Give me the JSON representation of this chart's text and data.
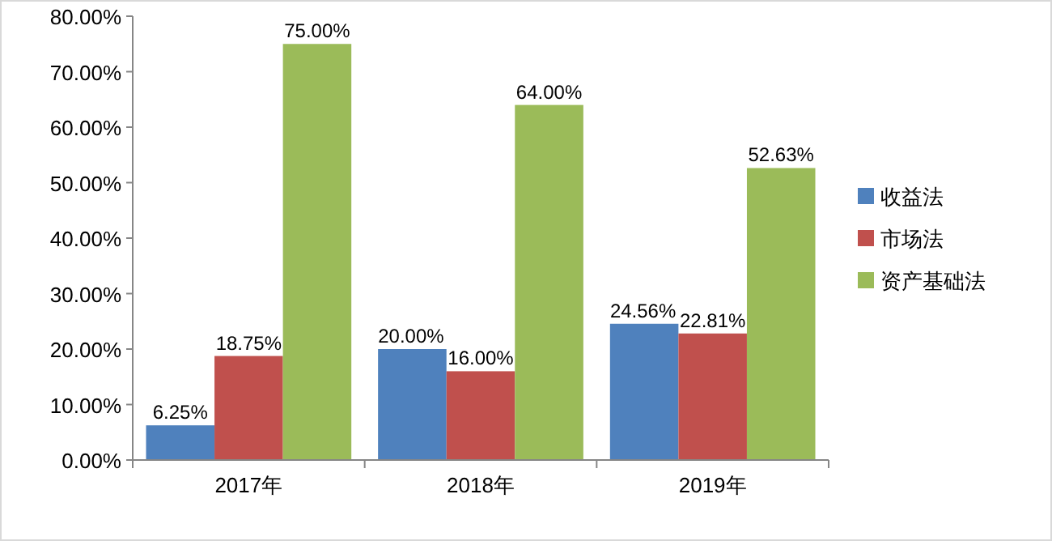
{
  "chart_data": {
    "type": "bar",
    "categories": [
      "2017年",
      "2018年",
      "2019年"
    ],
    "series": [
      {
        "name": "收益法",
        "color": "#4f81bd",
        "values": [
          6.25,
          20.0,
          24.56
        ],
        "value_labels": [
          "6.25%",
          "20.00%",
          "24.56%"
        ]
      },
      {
        "name": "市场法",
        "color": "#c0504d",
        "values": [
          18.75,
          16.0,
          22.81
        ],
        "value_labels": [
          "18.75%",
          "16.00%",
          "22.81%"
        ]
      },
      {
        "name": "资产基础法",
        "color": "#9bbb59",
        "values": [
          75.0,
          64.0,
          52.63
        ],
        "value_labels": [
          "75.00%",
          "64.00%",
          "52.63%"
        ]
      }
    ],
    "ylim": [
      0,
      80
    ],
    "yticks": [
      {
        "value": 0,
        "label": "0.00%"
      },
      {
        "value": 10,
        "label": "10.00%"
      },
      {
        "value": 20,
        "label": "20.00%"
      },
      {
        "value": 30,
        "label": "30.00%"
      },
      {
        "value": 40,
        "label": "40.00%"
      },
      {
        "value": 50,
        "label": "50.00%"
      },
      {
        "value": 60,
        "label": "60.00%"
      },
      {
        "value": 70,
        "label": "70.00%"
      },
      {
        "value": 80,
        "label": "80.00%"
      }
    ],
    "legend": "right"
  }
}
